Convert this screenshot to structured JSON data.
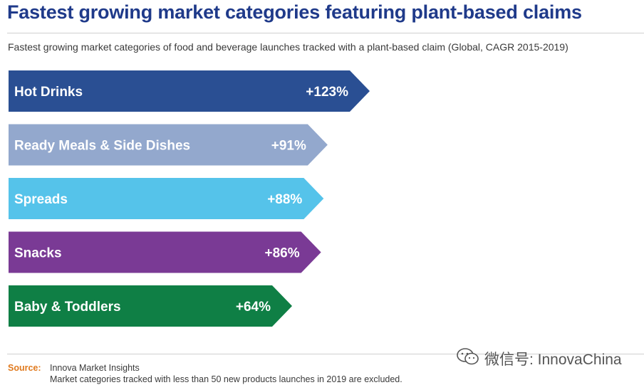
{
  "header": {
    "title": "Fastest growing market categories featuring plant-based claims",
    "subtitle": "Fastest growing market categories of food and beverage launches tracked with a plant-based claim (Global, CAGR 2015-2019)"
  },
  "chart_data": {
    "type": "bar",
    "orientation": "horizontal",
    "categories": [
      "Hot Drinks",
      "Ready Meals & Side Dishes",
      "Spreads",
      "Snacks",
      "Baby & Toddlers"
    ],
    "values": [
      123,
      91,
      88,
      86,
      64
    ],
    "value_labels": [
      "+123%",
      "+91%",
      "+88%",
      "+86%",
      "+64%"
    ],
    "unit": "%",
    "colors": [
      "#2a4f93",
      "#93a8cd",
      "#55c3ea",
      "#7a3a95",
      "#0f7f45"
    ]
  },
  "footer": {
    "source_label": "Source:",
    "source_text": "Innova Market Insights",
    "note": "Market categories tracked with less than 50 new products launches in 2019 are excluded."
  },
  "watermark": {
    "text": "微信号: InnovaChina",
    "icon": "wechat-icon"
  }
}
